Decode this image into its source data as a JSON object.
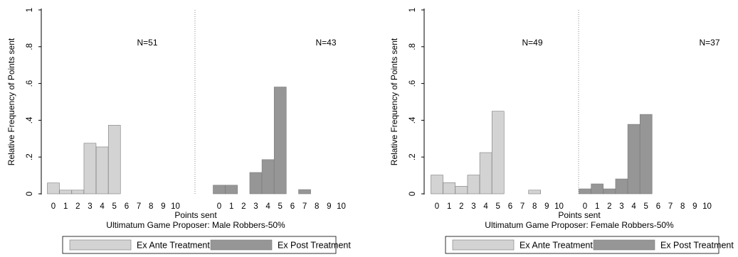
{
  "chart_data": [
    {
      "type": "bar",
      "ylabel": "Relative Frequency of Points sent",
      "xlabel": "Points sent",
      "subtitle": "Ultimatum Game Proposer: Male Robbers-50%",
      "ylim": [
        0,
        1
      ],
      "y_ticks": [
        "0",
        ".2",
        ".4",
        ".6",
        ".8",
        "1"
      ],
      "categories": [
        "0",
        "1",
        "2",
        "3",
        "4",
        "5",
        "6",
        "7",
        "8",
        "9",
        "10"
      ],
      "series": [
        {
          "name": "Ex Ante Treatment",
          "n_label": "N=51",
          "color": "#d3d3d3",
          "values": [
            0.059,
            0.02,
            0.02,
            0.275,
            0.255,
            0.373,
            0,
            0,
            0,
            0,
            0
          ]
        },
        {
          "name": "Ex Post Treatment",
          "n_label": "N=43",
          "color": "#969696",
          "values": [
            0.047,
            0.047,
            0,
            0.116,
            0.186,
            0.581,
            0,
            0.023,
            0,
            0,
            0
          ]
        }
      ],
      "legend": [
        "Ex Ante Treatment",
        "Ex Post Treatment"
      ]
    },
    {
      "type": "bar",
      "ylabel": "Relative Frequency of Points sent",
      "xlabel": "Points sent",
      "subtitle": "Ultimatum Game Proposer: Female Robbers-50%",
      "ylim": [
        0,
        1
      ],
      "y_ticks": [
        "0",
        ".2",
        ".4",
        ".6",
        ".8",
        "1"
      ],
      "categories": [
        "0",
        "1",
        "2",
        "3",
        "4",
        "5",
        "6",
        "7",
        "8",
        "9",
        "10"
      ],
      "series": [
        {
          "name": "Ex Ante Treatment",
          "n_label": "N=49",
          "color": "#d3d3d3",
          "values": [
            0.102,
            0.061,
            0.041,
            0.102,
            0.224,
            0.449,
            0,
            0,
            0.02,
            0,
            0
          ]
        },
        {
          "name": "Ex Post Treatment",
          "n_label": "N=37",
          "color": "#969696",
          "values": [
            0.027,
            0.054,
            0.027,
            0.081,
            0.378,
            0.432,
            0,
            0,
            0,
            0,
            0
          ]
        }
      ],
      "legend": [
        "Ex Ante Treatment",
        "Ex Post Treatment"
      ]
    }
  ]
}
